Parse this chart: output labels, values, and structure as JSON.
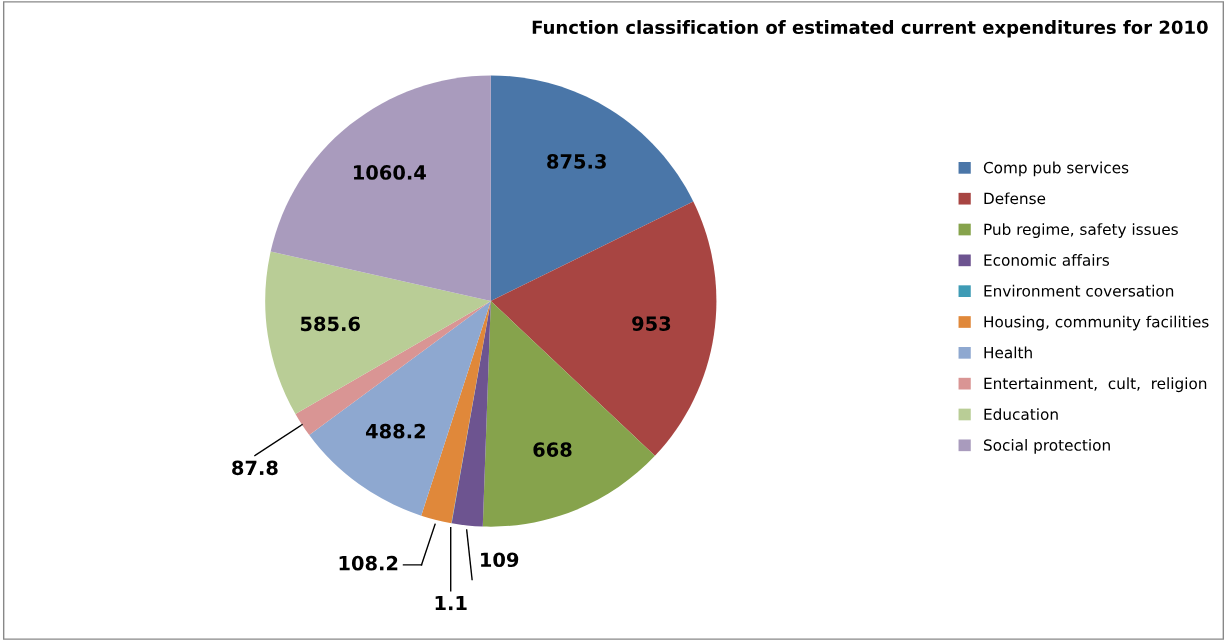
{
  "chart_data": {
    "type": "pie",
    "title": "Function classification of estimated current expenditures for 2010",
    "categories": [
      "Comp pub services",
      "Defense",
      "Pub regime, safety issues",
      "Economic affairs",
      "Environment coversation",
      "Housing, community facilities",
      "Health",
      "Entertainment,  cult,  religion",
      "Education",
      "Social protection"
    ],
    "values": [
      875.3,
      953,
      668,
      109,
      1.1,
      108.2,
      488.2,
      87.8,
      585.6,
      1060.4
    ],
    "colors": [
      "#4a76a8",
      "#a84542",
      "#86a34c",
      "#6d5490",
      "#3e9bb5",
      "#e0883a",
      "#8ea8d0",
      "#d99594",
      "#b9cd96",
      "#a99bbd"
    ],
    "data_labels": true,
    "legend": "right"
  }
}
